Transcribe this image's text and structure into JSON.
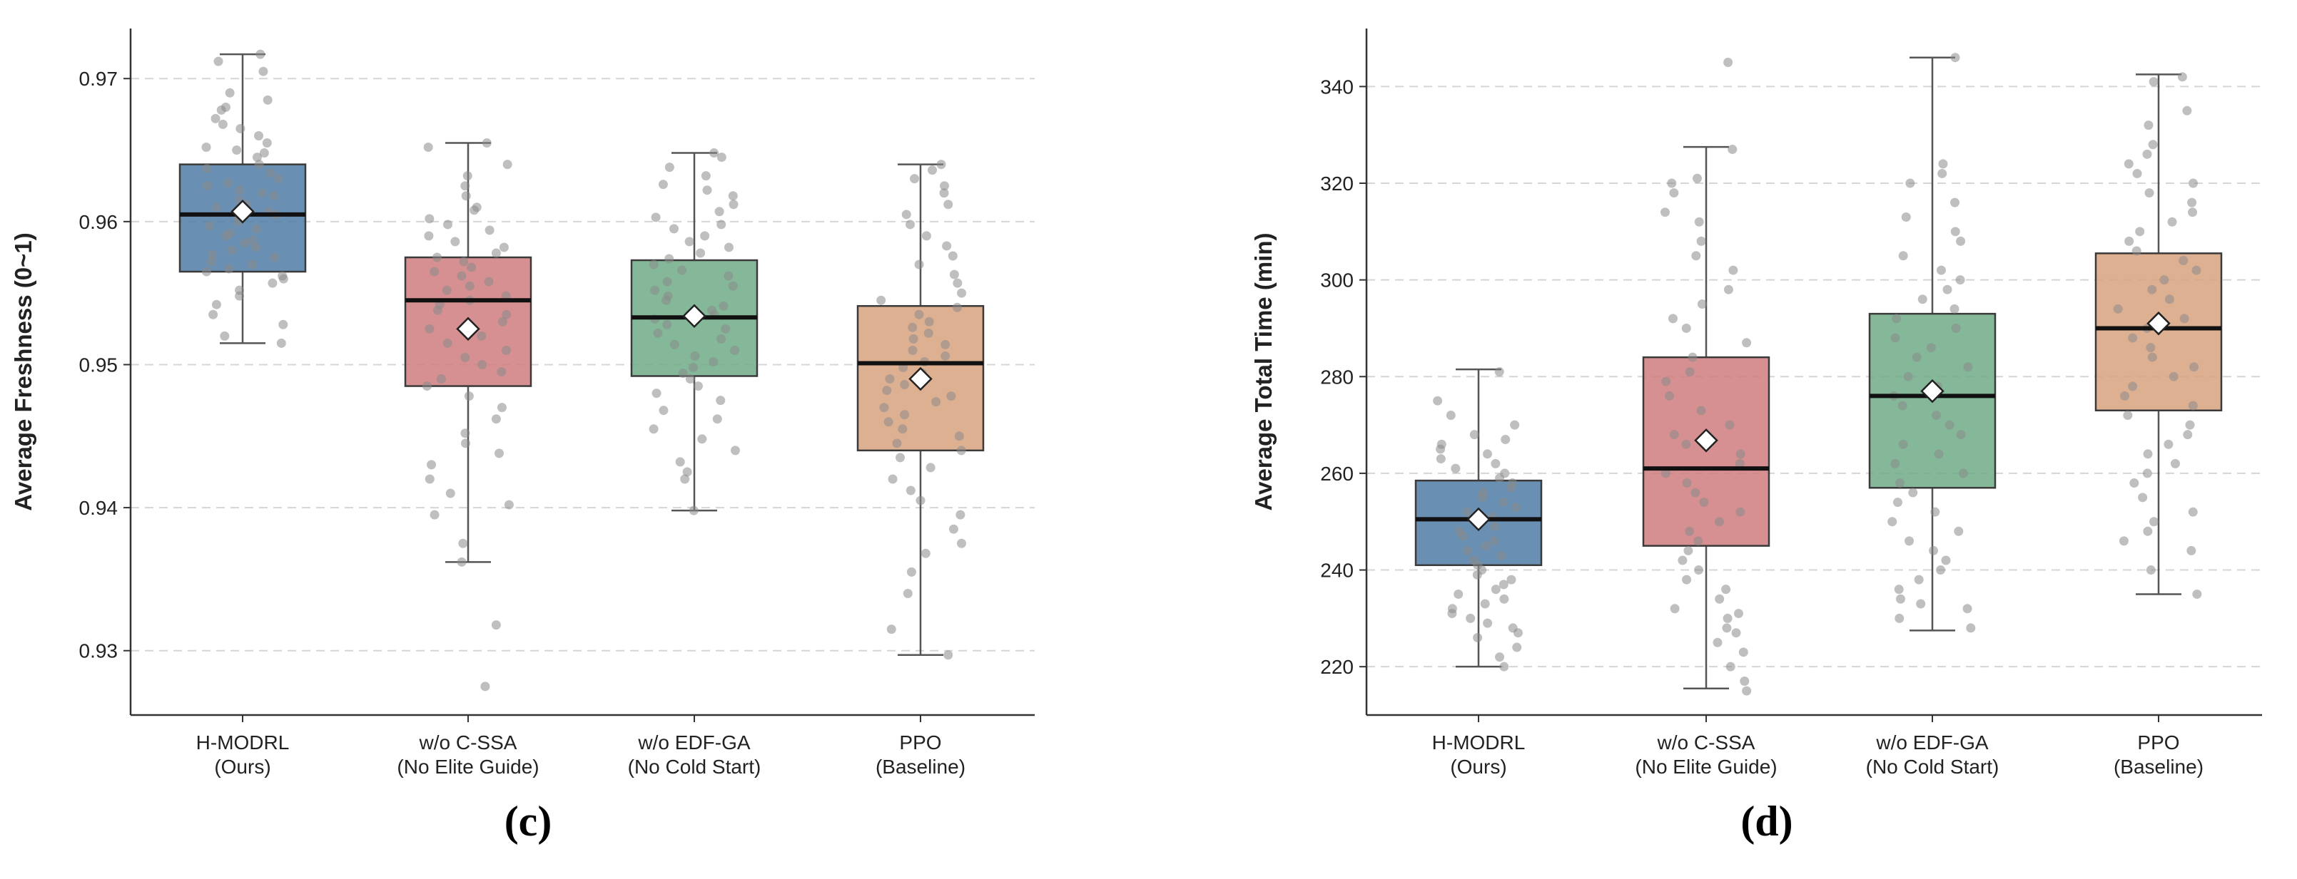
{
  "chart_data": [
    {
      "type": "box",
      "panel_label": "c",
      "ylabel": "Average Freshness (0~1)",
      "ylim": [
        0.9255,
        0.9735
      ],
      "yticks": [
        0.93,
        0.94,
        0.95,
        0.96,
        0.97
      ],
      "tick_decimals": 2,
      "grid": "horizontal-dashed",
      "categories": [
        [
          "H-MODRL",
          "(Ours)"
        ],
        [
          "w/o C-SSA",
          "(No Elite Guide)"
        ],
        [
          "w/o EDF-GA",
          "(No Cold Start)"
        ],
        [
          "PPO",
          "(Baseline)"
        ]
      ],
      "colors": [
        "#4f7ca6",
        "#cf7c7e",
        "#6fab87",
        "#d8a27f"
      ],
      "series": [
        {
          "min": 0.9515,
          "q1": 0.9565,
          "median": 0.9605,
          "q3": 0.964,
          "max": 0.9717,
          "mean": 0.9607,
          "points": [
            0.9717,
            0.9712,
            0.9705,
            0.969,
            0.9685,
            0.968,
            0.9678,
            0.9672,
            0.9668,
            0.9665,
            0.966,
            0.9655,
            0.9652,
            0.965,
            0.9648,
            0.9645,
            0.964,
            0.9637,
            0.9634,
            0.963,
            0.9627,
            0.9625,
            0.9622,
            0.962,
            0.9618,
            0.9615,
            0.9612,
            0.961,
            0.9607,
            0.9605,
            0.9603,
            0.96,
            0.9597,
            0.9595,
            0.9592,
            0.959,
            0.9587,
            0.9585,
            0.9582,
            0.958,
            0.9577,
            0.9575,
            0.9572,
            0.957,
            0.9567,
            0.9565,
            0.9562,
            0.956,
            0.9557,
            0.9552,
            0.9548,
            0.9542,
            0.9535,
            0.9528,
            0.952,
            0.9515
          ]
        },
        {
          "min": 0.9362,
          "q1": 0.9485,
          "median": 0.9545,
          "q3": 0.9575,
          "max": 0.9655,
          "mean": 0.9525,
          "points": [
            0.9655,
            0.9652,
            0.964,
            0.9632,
            0.9625,
            0.9618,
            0.961,
            0.9608,
            0.9602,
            0.9598,
            0.9594,
            0.959,
            0.9586,
            0.9582,
            0.9578,
            0.9575,
            0.9572,
            0.9568,
            0.9565,
            0.9562,
            0.9558,
            0.9555,
            0.9552,
            0.9548,
            0.9545,
            0.9542,
            0.9538,
            0.9535,
            0.953,
            0.9525,
            0.952,
            0.9515,
            0.951,
            0.9505,
            0.95,
            0.9495,
            0.949,
            0.9485,
            0.9478,
            0.947,
            0.9462,
            0.9452,
            0.9445,
            0.9438,
            0.943,
            0.942,
            0.941,
            0.9402,
            0.9395,
            0.9375,
            0.9362,
            0.9318,
            0.9275
          ]
        },
        {
          "min": 0.9398,
          "q1": 0.9492,
          "median": 0.9533,
          "q3": 0.9573,
          "max": 0.9648,
          "mean": 0.9534,
          "points": [
            0.9648,
            0.9645,
            0.9638,
            0.9632,
            0.9626,
            0.9622,
            0.9618,
            0.9612,
            0.9607,
            0.9603,
            0.9598,
            0.9595,
            0.959,
            0.9586,
            0.9582,
            0.9578,
            0.9574,
            0.957,
            0.9566,
            0.9562,
            0.9558,
            0.9555,
            0.9552,
            0.9548,
            0.9545,
            0.9541,
            0.9538,
            0.9535,
            0.9532,
            0.9528,
            0.9525,
            0.9522,
            0.9518,
            0.9514,
            0.951,
            0.9506,
            0.9502,
            0.9498,
            0.9494,
            0.949,
            0.9485,
            0.948,
            0.9475,
            0.9468,
            0.9462,
            0.9455,
            0.9448,
            0.944,
            0.9432,
            0.9425,
            0.942,
            0.9398
          ]
        },
        {
          "min": 0.9297,
          "q1": 0.944,
          "median": 0.9501,
          "q3": 0.9541,
          "max": 0.964,
          "mean": 0.949,
          "points": [
            0.964,
            0.9636,
            0.963,
            0.9625,
            0.962,
            0.9612,
            0.9605,
            0.9598,
            0.959,
            0.9583,
            0.9576,
            0.957,
            0.9563,
            0.9557,
            0.955,
            0.9545,
            0.954,
            0.9535,
            0.953,
            0.9526,
            0.9522,
            0.9518,
            0.9514,
            0.951,
            0.9506,
            0.9502,
            0.9498,
            0.9494,
            0.949,
            0.9486,
            0.9482,
            0.9478,
            0.9474,
            0.947,
            0.9465,
            0.946,
            0.9455,
            0.945,
            0.9445,
            0.944,
            0.9435,
            0.9428,
            0.942,
            0.9412,
            0.9405,
            0.9395,
            0.9385,
            0.9375,
            0.9368,
            0.9355,
            0.934,
            0.9315,
            0.9297
          ]
        }
      ]
    },
    {
      "type": "box",
      "panel_label": "d",
      "ylabel": "Average Total Time (min)",
      "ylim": [
        210,
        352
      ],
      "yticks": [
        220,
        240,
        260,
        280,
        300,
        320,
        340
      ],
      "tick_decimals": 0,
      "grid": "horizontal-dashed",
      "categories": [
        [
          "H-MODRL",
          "(Ours)"
        ],
        [
          "w/o C-SSA",
          "(No Elite Guide)"
        ],
        [
          "w/o EDF-GA",
          "(No Cold Start)"
        ],
        [
          "PPO",
          "(Baseline)"
        ]
      ],
      "colors": [
        "#4f7ca6",
        "#cf7c7e",
        "#6fab87",
        "#d8a27f"
      ],
      "series": [
        {
          "min": 220,
          "q1": 241,
          "median": 250.5,
          "q3": 258.5,
          "max": 281.5,
          "mean": 250.5,
          "points": [
            281,
            275,
            272,
            270,
            268,
            267,
            266,
            265,
            264,
            263,
            262,
            261,
            260,
            259,
            258,
            257,
            256,
            255,
            254,
            253,
            252,
            251,
            250,
            249,
            248,
            247,
            246,
            245,
            244,
            243,
            242,
            241,
            240,
            239,
            238,
            237,
            236,
            235,
            234,
            233,
            232,
            231,
            230,
            229,
            228,
            227,
            226,
            224,
            222,
            220
          ]
        },
        {
          "min": 215.5,
          "q1": 245,
          "median": 261,
          "q3": 284,
          "max": 327.5,
          "mean": 266.8,
          "points": [
            345,
            327,
            321,
            320,
            318,
            314,
            312,
            308,
            305,
            302,
            298,
            295,
            292,
            290,
            287,
            284,
            281,
            279,
            276,
            273,
            270,
            268,
            266,
            264,
            262,
            260,
            258,
            256,
            254,
            252,
            250,
            248,
            246,
            244,
            242,
            240,
            238,
            236,
            234,
            232,
            231,
            230,
            228,
            227,
            225,
            223,
            220,
            217,
            215
          ]
        },
        {
          "min": 227.5,
          "q1": 257,
          "median": 276,
          "q3": 293,
          "max": 346,
          "mean": 277,
          "points": [
            346,
            324,
            322,
            320,
            316,
            313,
            310,
            308,
            305,
            302,
            300,
            298,
            296,
            294,
            292,
            290,
            288,
            286,
            284,
            282,
            280,
            278,
            276,
            274,
            272,
            270,
            268,
            266,
            264,
            262,
            260,
            258,
            256,
            254,
            252,
            250,
            248,
            246,
            244,
            242,
            240,
            238,
            236,
            234,
            233,
            232,
            230,
            228
          ]
        },
        {
          "min": 235,
          "q1": 273,
          "median": 290,
          "q3": 305.5,
          "max": 342.5,
          "mean": 291,
          "points": [
            342,
            341,
            335,
            332,
            328,
            326,
            324,
            322,
            320,
            318,
            316,
            314,
            312,
            310,
            308,
            306,
            304,
            302,
            300,
            298,
            296,
            294,
            292,
            290,
            288,
            286,
            284,
            282,
            280,
            278,
            276,
            274,
            272,
            270,
            268,
            266,
            264,
            262,
            260,
            258,
            255,
            252,
            250,
            248,
            246,
            244,
            240,
            235
          ]
        }
      ]
    }
  ]
}
